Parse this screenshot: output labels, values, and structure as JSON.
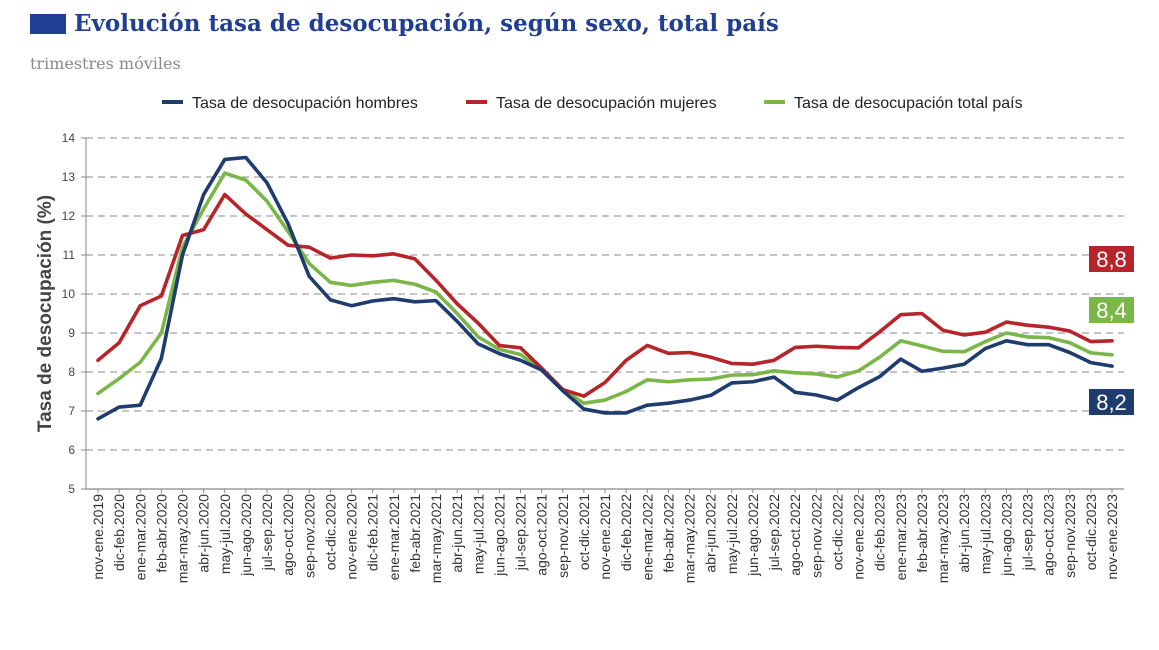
{
  "header": {
    "title": "Evolución tasa de desocupación, según sexo, total país",
    "subtitle": "trimestres móviles"
  },
  "colors": {
    "hombres": "#1f3c6e",
    "mujeres": "#b7252b",
    "total": "#7ab648",
    "grid": "#a0a0a0",
    "title": "#203f94"
  },
  "chart_data": {
    "type": "line",
    "title": "Evolución tasa de desocupación, según sexo, total país",
    "subtitle": "trimestres móviles",
    "xlabel": "",
    "ylabel": "Tasa de desocupación (%)",
    "ylim": [
      5,
      14
    ],
    "yticks": [
      5,
      6,
      7,
      8,
      9,
      10,
      11,
      12,
      13,
      14
    ],
    "grid": true,
    "legend_position": "top",
    "categories": [
      "nov-ene.2019",
      "dic-feb.2020",
      "ene-mar.2020",
      "feb-abr.2020",
      "mar-may.2020",
      "abr-jun.2020",
      "may-jul.2020",
      "jun-ago.2020",
      "jul-sep.2020",
      "ago-oct.2020",
      "sep-nov.2020",
      "oct-dic.2020",
      "nov-ene.2020",
      "dic-feb.2021",
      "ene-mar.2021",
      "feb-abr.2021",
      "mar-may.2021",
      "abr-jun.2021",
      "may-jul.2021",
      "jun-ago.2021",
      "jul-sep.2021",
      "ago-oct.2021",
      "sep-nov.2021",
      "oct-dic.2021",
      "nov-ene.2021",
      "dic-feb.2022",
      "ene-mar.2022",
      "feb-abr.2022",
      "mar-may.2022",
      "abr-jun.2022",
      "may-jul.2022",
      "jun-ago.2022",
      "jul-sep.2022",
      "ago-oct.2022",
      "sep-nov.2022",
      "oct-dic.2022",
      "nov-ene.2022",
      "dic-feb.2023",
      "ene-mar.2023",
      "feb-abr.2023",
      "mar-may.2023",
      "abr-jun.2023",
      "may-jul.2023",
      "jun-ago.2023",
      "jul-sep.2023",
      "ago-oct.2023",
      "sep-nov.2023",
      "oct-dic.2023",
      "nov-ene.2023"
    ],
    "series": [
      {
        "name": "Tasa de desocupación hombres",
        "color": "#1f3c6e",
        "end_label": "8,2",
        "values": [
          6.8,
          7.1,
          7.15,
          8.35,
          11.0,
          12.55,
          13.45,
          13.5,
          12.85,
          11.8,
          10.45,
          9.85,
          9.7,
          9.82,
          9.88,
          9.8,
          9.83,
          9.3,
          8.72,
          8.47,
          8.3,
          8.05,
          7.52,
          7.05,
          6.95,
          6.95,
          7.15,
          7.2,
          7.28,
          7.4,
          7.72,
          7.75,
          7.87,
          7.48,
          7.41,
          7.28,
          7.6,
          7.88,
          8.33,
          8.02,
          8.1,
          8.2,
          8.6,
          8.8,
          8.7,
          8.7,
          8.5,
          8.24,
          8.15
        ]
      },
      {
        "name": "Tasa de desocupación mujeres",
        "color": "#b7252b",
        "end_label": "8,8",
        "values": [
          8.3,
          8.75,
          9.7,
          9.95,
          11.5,
          11.65,
          12.55,
          12.05,
          11.65,
          11.25,
          11.2,
          10.92,
          11.0,
          10.98,
          11.03,
          10.9,
          10.35,
          9.75,
          9.25,
          8.68,
          8.62,
          8.1,
          7.55,
          7.38,
          7.73,
          8.3,
          8.68,
          8.48,
          8.5,
          8.38,
          8.22,
          8.2,
          8.3,
          8.63,
          8.66,
          8.63,
          8.62,
          9.03,
          9.47,
          9.5,
          9.07,
          8.95,
          9.02,
          9.28,
          9.2,
          9.15,
          9.05,
          8.78,
          8.8
        ]
      },
      {
        "name": "Tasa de desocupación total país",
        "color": "#7ab648",
        "end_label": "8,4",
        "values": [
          7.45,
          7.83,
          8.25,
          9.0,
          11.2,
          12.18,
          13.1,
          12.92,
          12.38,
          11.6,
          10.78,
          10.3,
          10.22,
          10.3,
          10.35,
          10.25,
          10.05,
          9.5,
          8.9,
          8.58,
          8.45,
          8.05,
          7.55,
          7.2,
          7.28,
          7.5,
          7.8,
          7.75,
          7.8,
          7.82,
          7.92,
          7.93,
          8.03,
          7.98,
          7.95,
          7.87,
          8.03,
          8.38,
          8.8,
          8.67,
          8.53,
          8.52,
          8.78,
          9.0,
          8.9,
          8.88,
          8.75,
          8.49,
          8.44
        ]
      }
    ]
  }
}
